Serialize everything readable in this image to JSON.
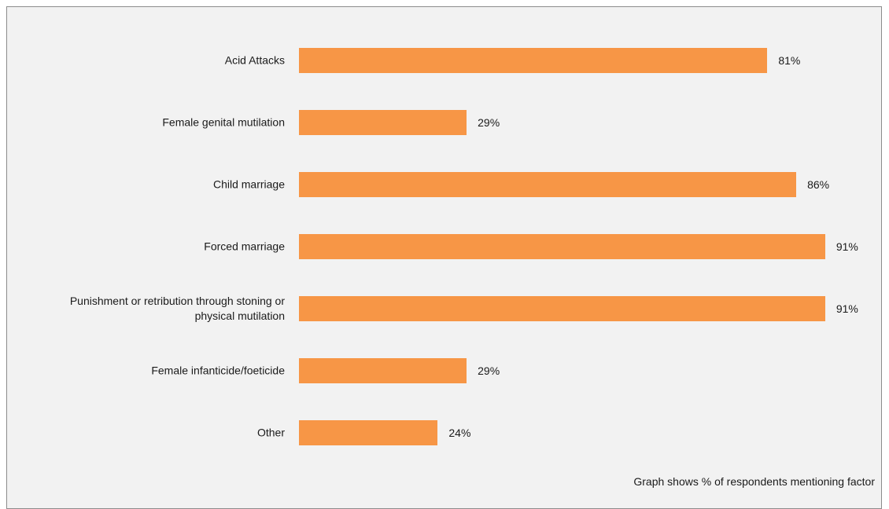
{
  "chart_data": {
    "type": "bar",
    "orientation": "horizontal",
    "categories": [
      "Acid Attacks",
      "Female genital mutilation",
      "Child marriage",
      "Forced marriage",
      "Punishment or retribution through stoning or physical mutilation",
      "Female infanticide/foeticide",
      "Other"
    ],
    "values": [
      81,
      29,
      86,
      91,
      91,
      29,
      24
    ],
    "value_labels": [
      "81%",
      "29%",
      "86%",
      "91%",
      "91%",
      "29%",
      "24%"
    ],
    "color": "#f79646",
    "xlim": [
      0,
      100
    ],
    "note": "Graph shows % of respondents mentioning factor"
  }
}
